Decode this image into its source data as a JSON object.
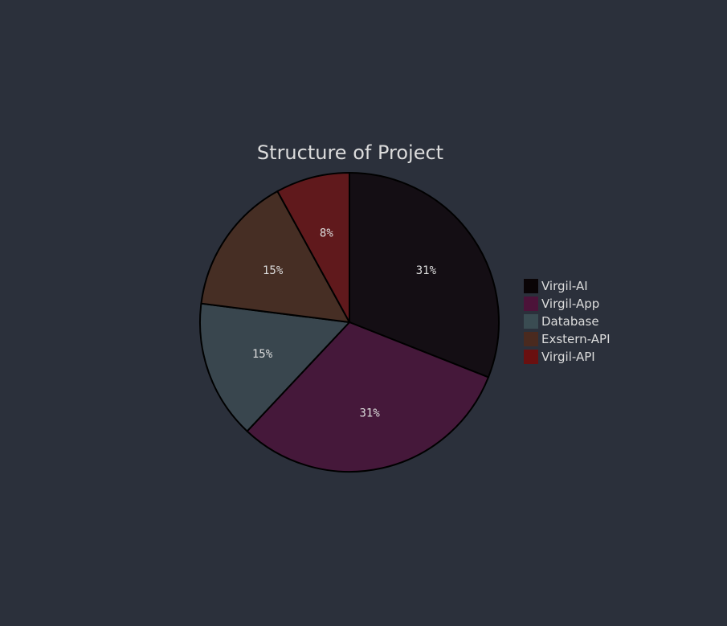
{
  "chart_data": {
    "type": "pie",
    "title": "Structure of Project",
    "slices": [
      {
        "label": "Virgil-AI",
        "value": 31,
        "display": "31%",
        "color": "#140e14"
      },
      {
        "label": "Virgil-App",
        "value": 31,
        "display": "31%",
        "color": "#45183a"
      },
      {
        "label": "Database",
        "value": 15,
        "display": "15%",
        "color": "#39464e"
      },
      {
        "label": "Exstern-API",
        "value": 15,
        "display": "15%",
        "color": "#462e24"
      },
      {
        "label": "Virgil-API",
        "value": 8,
        "display": "8%",
        "color": "#60191c"
      }
    ],
    "legend": {
      "position": "right",
      "colors": [
        "#0a0406",
        "#4c1339",
        "#3a4c52",
        "#4a2a1f",
        "#6a1010"
      ]
    },
    "start_angle": "top",
    "direction": "clockwise",
    "background": "#2b303b",
    "slice_stroke": "#000000"
  }
}
